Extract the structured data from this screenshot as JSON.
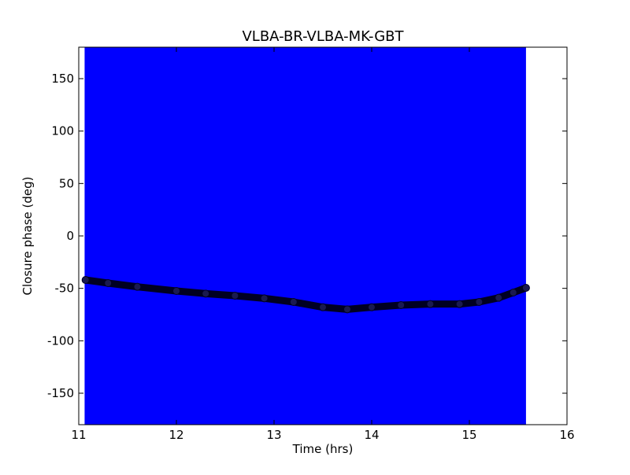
{
  "chart_data": {
    "type": "line",
    "title": "VLBA-BR-VLBA-MK-GBT",
    "x_label": "Time (hrs)",
    "y_label": "Closure phase (deg)",
    "xlim": [
      11,
      16
    ],
    "xticks": [
      11,
      12,
      13,
      14,
      15,
      16
    ],
    "ylim": [
      -180,
      180
    ],
    "yticks": [
      -150,
      -100,
      -50,
      0,
      50,
      100,
      150
    ],
    "band": {
      "x": [
        11.06,
        15.58
      ],
      "lower": -180,
      "upper": 180,
      "color": "#0000ff"
    },
    "series": [
      {
        "color": "#000022",
        "x": [
          11.07,
          11.3,
          11.6,
          12,
          12.3,
          12.6,
          12.9,
          13.2,
          13.5,
          13.75,
          14,
          14.3,
          14.6,
          14.9,
          15.1,
          15.3,
          15.45,
          15.58
        ],
        "values": [
          -42,
          -45,
          -48.5,
          -52.5,
          -55,
          -57,
          -59.5,
          -63,
          -68,
          -70,
          -68,
          -66,
          -65,
          -65,
          -63,
          -59,
          -54,
          -49.5
        ]
      }
    ]
  }
}
